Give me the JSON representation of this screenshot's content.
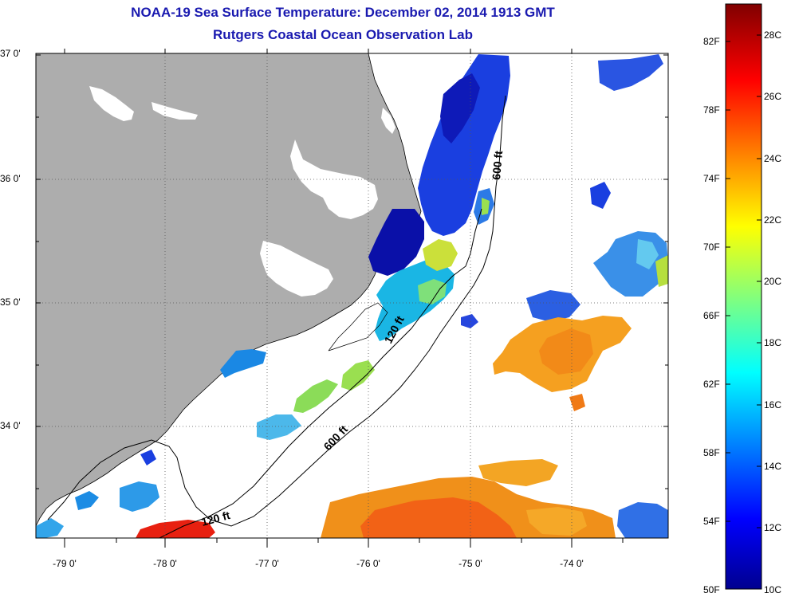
{
  "title": {
    "line1": "NOAA-19 Sea Surface Temperature:  December 02, 2014 1913 GMT",
    "line2": "Rutgers Coastal Ocean Observation Lab"
  },
  "map": {
    "latitude_labels": [
      "37 0'",
      "36 0'",
      "35 0'",
      "34 0'"
    ],
    "longitude_labels": [
      "-79 0'",
      "-78 0'",
      "-77 0'",
      "-76 0'",
      "-75 0'",
      "-74 0'"
    ],
    "contour_labels": {
      "c600_north": "600 ft",
      "c600_south": "600 ft",
      "c120_mid": "120 ft",
      "c120_south": "120 ft"
    }
  },
  "colorbar": {
    "fahrenheit_labels": [
      "82F",
      "78F",
      "74F",
      "70F",
      "66F",
      "62F",
      "58F",
      "54F",
      "50F"
    ],
    "celsius_labels": [
      "28C",
      "26C",
      "24C",
      "22C",
      "20C",
      "18C",
      "16C",
      "14C",
      "12C",
      "10C"
    ],
    "range_c": [
      10,
      29
    ]
  },
  "colors": {
    "land": "#adadad",
    "title": "#1a1ab0",
    "grid": "#555555"
  }
}
